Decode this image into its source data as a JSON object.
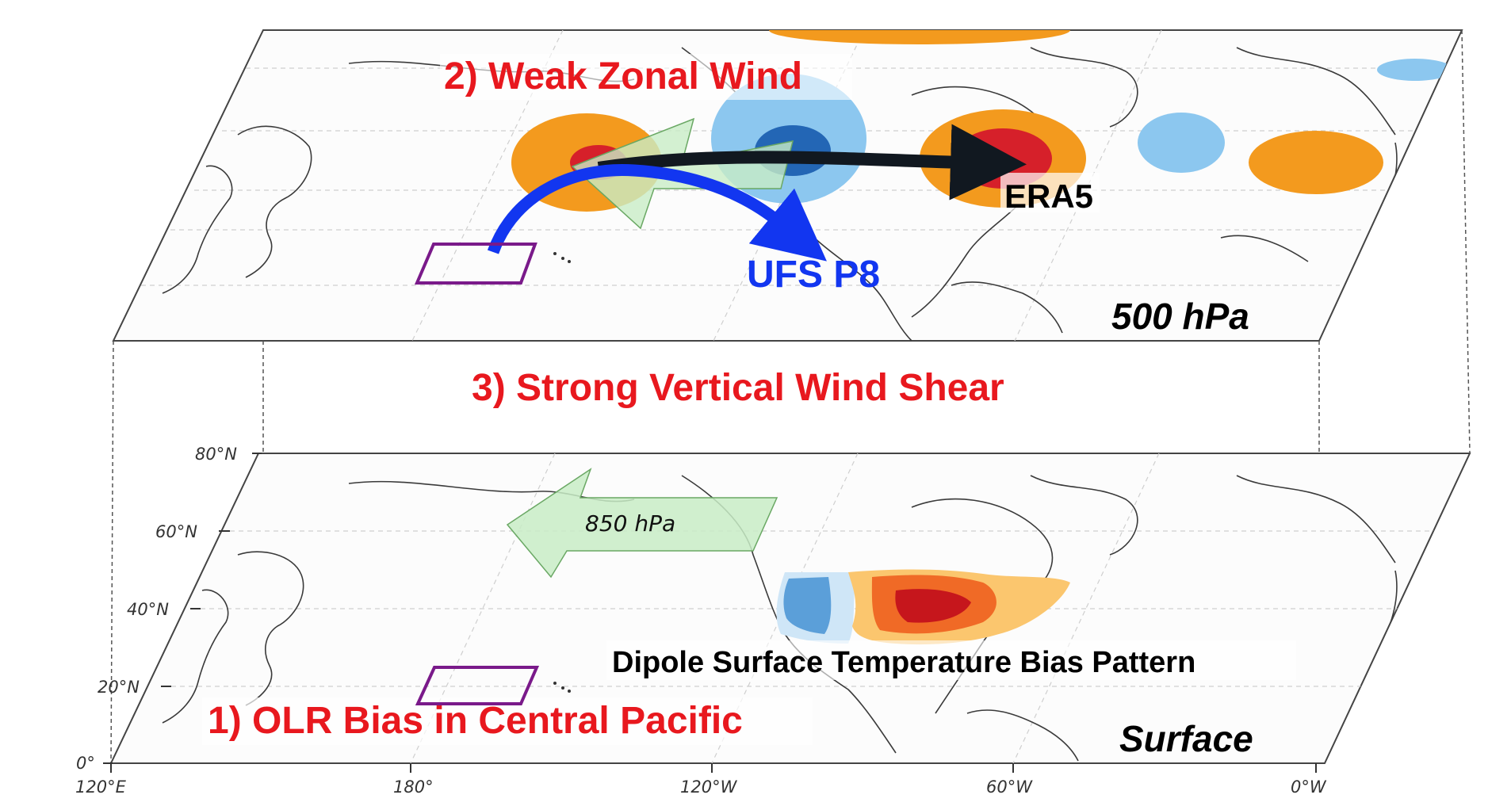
{
  "labels": {
    "weak_zonal_wind": "2) Weak Zonal Wind",
    "vertical_shear": "3) Strong Vertical Wind Shear",
    "olr_bias": "1) OLR Bias in Central Pacific",
    "era5": "ERA5",
    "ufs": "UFS P8",
    "layer_500": "500 hPa",
    "layer_surface": "Surface",
    "wind_850": "850 hPa",
    "dipole": "Dipole Surface Temperature Bias Pattern"
  },
  "axes": {
    "lat_ticks": [
      "80°N",
      "60°N",
      "40°N",
      "20°N",
      "0°"
    ],
    "lon_ticks": [
      "120°E",
      "180°",
      "120°W",
      "60°W",
      "0°W"
    ]
  },
  "colors": {
    "title_red": "#e8181e",
    "ufs_blue": "#1236f0",
    "era5_dark": "#111820",
    "warm_light": "#f39a1e",
    "warm_dark": "#d6202a",
    "cool_light": "#8cc7ef",
    "cool_dark": "#2366b5",
    "wind_arrow_fill": "#c8ecc5",
    "box_purple": "#7a1a8a"
  }
}
